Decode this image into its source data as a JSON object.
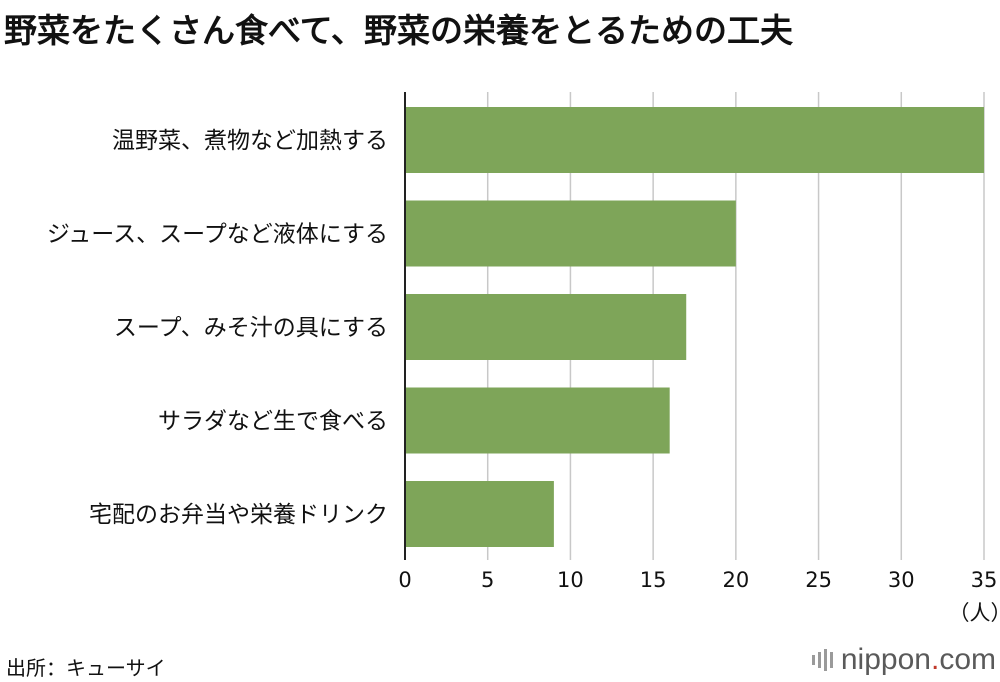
{
  "page": {
    "title": "野菜をたくさん食べて、野菜の栄養をとるための工夫",
    "source": "出所：キューサイ",
    "brand": {
      "prefix": "nippon",
      "dot": ".",
      "suffix": "com"
    }
  },
  "colors": {
    "bar": "#7ea559",
    "grid": "#c8c8c8",
    "axis": "#222222",
    "text": "#111111",
    "brand_dot": "#c0392b"
  },
  "chart_data": {
    "type": "bar",
    "orientation": "horizontal",
    "categories": [
      "温野菜、煮物など加熱する",
      "ジュース、スープなど液体にする",
      "スープ、みそ汁の具にする",
      "サラダなど生で食べる",
      "宅配のお弁当や栄養ドリンク"
    ],
    "values": [
      35,
      20,
      17,
      16,
      9
    ],
    "xlim": [
      0,
      35
    ],
    "ticks": [
      "0",
      "5",
      "10",
      "15",
      "20",
      "25",
      "30",
      "35"
    ],
    "unit_label": "（人）",
    "grid": true
  }
}
